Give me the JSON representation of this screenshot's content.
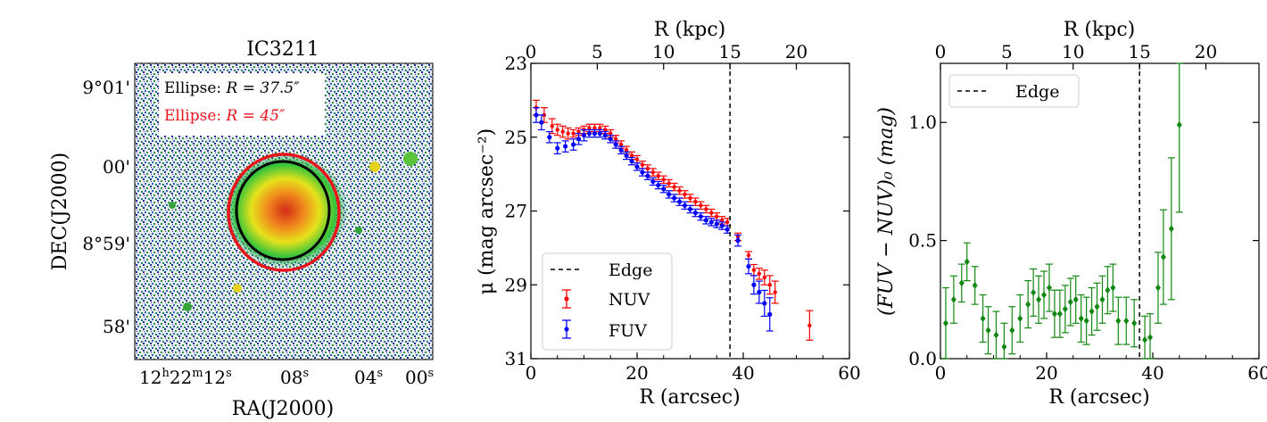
{
  "image_panel": {
    "title": "IC3211",
    "xlabel": "RA(J2000)",
    "ylabel": "DEC(J2000)",
    "ra_ticks": [
      {
        "h": "12",
        "m": "22",
        "s": "12",
        "label_full": true
      },
      {
        "s": "08"
      },
      {
        "s": "04"
      },
      {
        "s": "00"
      }
    ],
    "dec_ticks": [
      "9°01'",
      "00'",
      "8°59'",
      "58'"
    ],
    "legend": [
      {
        "prefix": "Ellipse: ",
        "value": "R = 37.5″",
        "color": "#000000"
      },
      {
        "prefix": "Ellipse: ",
        "value": "R = 45″",
        "color": "#e8141b"
      }
    ],
    "colors": {
      "ellipse_inner": "#000000",
      "ellipse_outer": "#e8141b"
    }
  },
  "chart_data": [
    {
      "type": "scatter",
      "panel": "surface_brightness",
      "xlabel": "R (arcsec)",
      "x2label": "R (kpc)",
      "ylabel": "μ (mag arcsec⁻²)",
      "xlim": [
        0,
        60
      ],
      "ylim": [
        31,
        23
      ],
      "x_ticks": [
        0,
        20,
        40,
        60
      ],
      "y_ticks": [
        23,
        25,
        27,
        29,
        31
      ],
      "x2_ticks": [
        0,
        5,
        10,
        15,
        20
      ],
      "kpc_per_arcsec": 0.4,
      "edge_x": 37.5,
      "legend": [
        "Edge",
        "NUV",
        "FUV"
      ],
      "series": [
        {
          "name": "NUV",
          "color": "#ff0000",
          "marker": "circle",
          "points": [
            [
              1,
              24.2,
              0.2
            ],
            [
              2.5,
              24.4,
              0.2
            ],
            [
              4,
              24.7,
              0.2
            ],
            [
              5,
              24.8,
              0.15
            ],
            [
              6,
              24.85,
              0.15
            ],
            [
              7,
              24.9,
              0.15
            ],
            [
              8,
              24.9,
              0.1
            ],
            [
              9,
              24.85,
              0.1
            ],
            [
              10,
              24.8,
              0.1
            ],
            [
              11,
              24.75,
              0.1
            ],
            [
              12,
              24.75,
              0.1
            ],
            [
              13,
              24.75,
              0.1
            ],
            [
              14,
              24.8,
              0.1
            ],
            [
              15,
              24.9,
              0.1
            ],
            [
              16,
              25.05,
              0.1
            ],
            [
              17,
              25.2,
              0.1
            ],
            [
              18,
              25.35,
              0.1
            ],
            [
              19,
              25.5,
              0.1
            ],
            [
              20,
              25.6,
              0.1
            ],
            [
              21,
              25.75,
              0.1
            ],
            [
              22,
              25.85,
              0.1
            ],
            [
              23,
              25.95,
              0.1
            ],
            [
              24,
              26.05,
              0.1
            ],
            [
              25,
              26.15,
              0.1
            ],
            [
              26,
              26.25,
              0.1
            ],
            [
              27,
              26.35,
              0.1
            ],
            [
              28,
              26.45,
              0.1
            ],
            [
              29,
              26.55,
              0.1
            ],
            [
              30,
              26.65,
              0.1
            ],
            [
              31,
              26.75,
              0.1
            ],
            [
              32,
              26.85,
              0.1
            ],
            [
              33,
              26.95,
              0.1
            ],
            [
              34,
              27.05,
              0.1
            ],
            [
              35,
              27.15,
              0.1
            ],
            [
              36,
              27.25,
              0.1
            ],
            [
              37,
              27.3,
              0.1
            ],
            [
              39,
              27.7,
              0.1
            ],
            [
              41,
              28.2,
              0.1
            ],
            [
              42,
              28.6,
              0.15
            ],
            [
              43,
              28.7,
              0.15
            ],
            [
              44,
              28.8,
              0.2
            ],
            [
              45,
              29.0,
              0.25
            ],
            [
              46,
              29.2,
              0.3
            ],
            [
              52.5,
              30.1,
              0.4
            ]
          ]
        },
        {
          "name": "FUV",
          "color": "#0000ff",
          "marker": "star",
          "points": [
            [
              1,
              24.4,
              0.2
            ],
            [
              2,
              24.6,
              0.2
            ],
            [
              3.5,
              25.0,
              0.15
            ],
            [
              5,
              25.3,
              0.15
            ],
            [
              6.5,
              25.25,
              0.15
            ],
            [
              8,
              25.2,
              0.15
            ],
            [
              9,
              25.05,
              0.15
            ],
            [
              10,
              24.95,
              0.15
            ],
            [
              11,
              24.9,
              0.1
            ],
            [
              12,
              24.9,
              0.1
            ],
            [
              13,
              24.9,
              0.1
            ],
            [
              14,
              24.95,
              0.1
            ],
            [
              15,
              25.05,
              0.1
            ],
            [
              16,
              25.2,
              0.1
            ],
            [
              17,
              25.35,
              0.1
            ],
            [
              18,
              25.5,
              0.1
            ],
            [
              19,
              25.65,
              0.1
            ],
            [
              20,
              25.8,
              0.1
            ],
            [
              21,
              25.95,
              0.1
            ],
            [
              22,
              26.05,
              0.1
            ],
            [
              23,
              26.2,
              0.1
            ],
            [
              24,
              26.3,
              0.1
            ],
            [
              25,
              26.4,
              0.1
            ],
            [
              26,
              26.55,
              0.1
            ],
            [
              27,
              26.65,
              0.1
            ],
            [
              28,
              26.75,
              0.1
            ],
            [
              29,
              26.85,
              0.1
            ],
            [
              30,
              26.95,
              0.1
            ],
            [
              31,
              27.05,
              0.1
            ],
            [
              32,
              27.15,
              0.1
            ],
            [
              33,
              27.25,
              0.1
            ],
            [
              34,
              27.3,
              0.1
            ],
            [
              35,
              27.35,
              0.1
            ],
            [
              36,
              27.4,
              0.1
            ],
            [
              37,
              27.5,
              0.1
            ],
            [
              39,
              27.8,
              0.15
            ],
            [
              41,
              28.5,
              0.2
            ],
            [
              42,
              29.0,
              0.25
            ],
            [
              43,
              29.2,
              0.3
            ],
            [
              44,
              29.5,
              0.35
            ],
            [
              45,
              29.8,
              0.45
            ]
          ]
        }
      ]
    },
    {
      "type": "scatter",
      "panel": "color_profile",
      "xlabel": "R (arcsec)",
      "x2label": "R (kpc)",
      "ylabel": "(FUV − NUV)₀ (mag)",
      "xlim": [
        0,
        60
      ],
      "ylim": [
        0,
        1.25
      ],
      "x_ticks": [
        0,
        20,
        40,
        60
      ],
      "y_ticks": [
        0.0,
        0.5,
        1.0
      ],
      "x2_ticks": [
        0,
        5,
        10,
        15,
        20
      ],
      "kpc_per_arcsec": 0.4,
      "edge_x": 37.5,
      "legend": [
        "Edge"
      ],
      "series": [
        {
          "name": "FUV-NUV",
          "color": "#118811",
          "marker": "diamond",
          "points": [
            [
              1,
              0.15,
              0.15
            ],
            [
              2.5,
              0.25,
              0.1
            ],
            [
              4,
              0.32,
              0.08
            ],
            [
              5,
              0.41,
              0.08
            ],
            [
              6.5,
              0.31,
              0.08
            ],
            [
              8,
              0.17,
              0.1
            ],
            [
              9,
              0.12,
              0.1
            ],
            [
              10.5,
              0.1,
              0.1
            ],
            [
              12,
              0.05,
              0.1
            ],
            [
              13.5,
              0.12,
              0.1
            ],
            [
              15,
              0.17,
              0.1
            ],
            [
              16.5,
              0.23,
              0.1
            ],
            [
              17.5,
              0.28,
              0.1
            ],
            [
              18.5,
              0.25,
              0.1
            ],
            [
              19.5,
              0.27,
              0.1
            ],
            [
              20.5,
              0.3,
              0.1
            ],
            [
              21.5,
              0.19,
              0.1
            ],
            [
              22.5,
              0.19,
              0.1
            ],
            [
              23.5,
              0.21,
              0.1
            ],
            [
              24.5,
              0.24,
              0.1
            ],
            [
              25.5,
              0.25,
              0.1
            ],
            [
              26.5,
              0.17,
              0.1
            ],
            [
              27.5,
              0.16,
              0.1
            ],
            [
              28.5,
              0.2,
              0.1
            ],
            [
              29.5,
              0.22,
              0.1
            ],
            [
              30.5,
              0.25,
              0.1
            ],
            [
              31.5,
              0.29,
              0.1
            ],
            [
              32.5,
              0.3,
              0.1
            ],
            [
              33.5,
              0.16,
              0.1
            ],
            [
              35,
              0.16,
              0.1
            ],
            [
              36.5,
              0.15,
              0.1
            ],
            [
              38.5,
              0.08,
              0.1
            ],
            [
              39.5,
              0.09,
              0.1
            ],
            [
              41,
              0.3,
              0.15
            ],
            [
              42,
              0.43,
              0.2
            ],
            [
              43.5,
              0.55,
              0.3
            ],
            [
              45,
              0.99,
              0.37
            ]
          ]
        }
      ]
    }
  ]
}
